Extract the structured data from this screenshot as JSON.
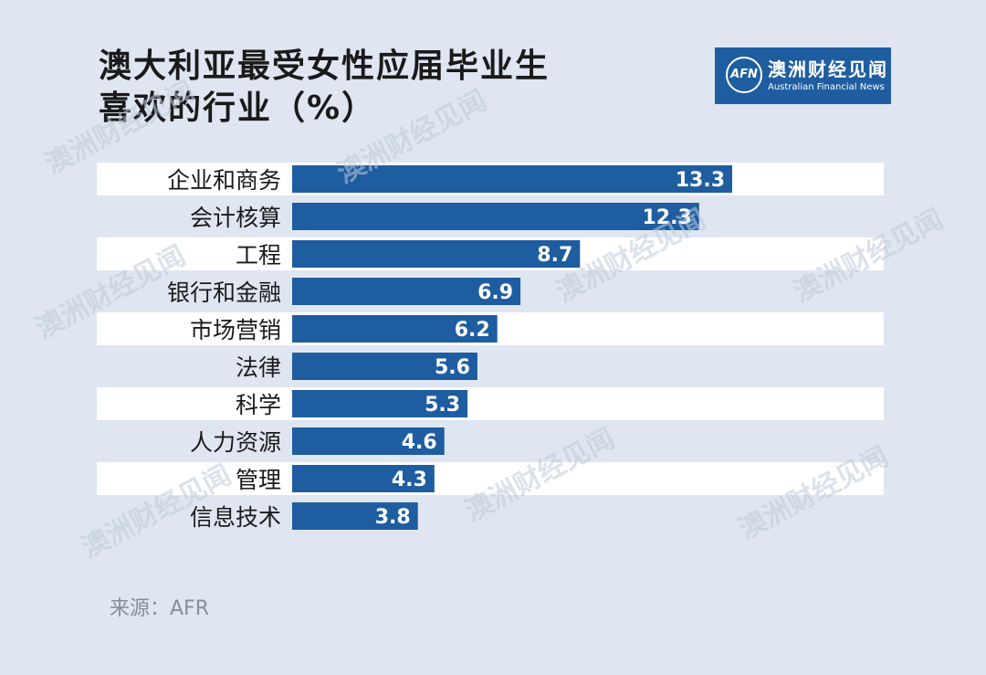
{
  "title_line1": "澳大利亚最受女性应届毕业生",
  "title_line2": "喜欢的行业（%）",
  "logo": {
    "mark": "AFN",
    "name_cn": "澳洲财经见闻",
    "name_en": "Australian Financial News"
  },
  "source": "来源：AFR",
  "colors": {
    "background": "#dfe6f1",
    "bar": "#1e5da0",
    "row_band": "#ffffff",
    "label_text": "#1a1a1a",
    "value_text": "#ffffff"
  },
  "chart_data": {
    "type": "bar",
    "orientation": "horizontal",
    "title": "澳大利亚最受女性应届毕业生喜欢的行业（%）",
    "categories": [
      "企业和商务",
      "会计核算",
      "工程",
      "银行和金融",
      "市场营销",
      "法律",
      "科学",
      "人力资源",
      "管理",
      "信息技术"
    ],
    "values": [
      13.3,
      12.3,
      8.7,
      6.9,
      6.2,
      5.6,
      5.3,
      4.6,
      4.3,
      3.8
    ],
    "value_labels": [
      "13.3",
      "12.3",
      "8.7",
      "6.9",
      "6.2",
      "5.6",
      "5.3",
      "4.6",
      "4.3",
      "3.8"
    ],
    "xlim": [
      0,
      17.7
    ],
    "grid": false,
    "legend": "none"
  }
}
